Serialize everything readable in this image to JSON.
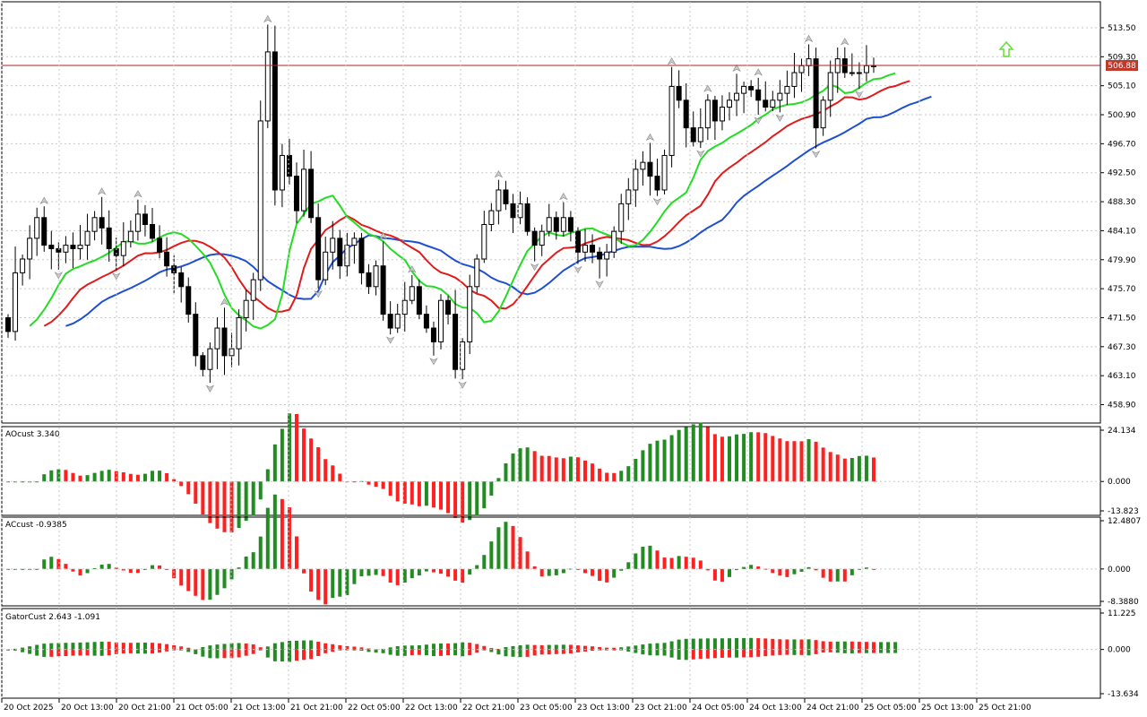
{
  "colors": {
    "background": "#ffffff",
    "grid": "#c8c8c8",
    "bull_body": "#ffffff",
    "bear_body": "#000000",
    "current_price_line": "#b22222",
    "current_price_label_bg": "#c0392b",
    "jaw": "#1f4fd1",
    "teeth": "#e01b1b",
    "lips": "#22dd22",
    "hist_up": "#228B22",
    "hist_down": "#ff2020",
    "signal_arrow": "#66dd33"
  },
  "price_panel": {
    "current_price": "506.88",
    "y_ticks": [
      "513.50",
      "509.30",
      "505.10",
      "500.90",
      "496.70",
      "492.50",
      "488.30",
      "484.10",
      "479.90",
      "475.70",
      "471.50",
      "467.30",
      "463.10",
      "458.90"
    ]
  },
  "ao_panel": {
    "label": "AOcust 3.340",
    "y_ticks": [
      "24.134",
      "0.000",
      "-13.823"
    ]
  },
  "ac_panel": {
    "label": "ACcust -0.9385",
    "y_ticks": [
      "12.4807",
      "0.000",
      "-8.3880"
    ]
  },
  "gator_panel": {
    "label": "GatorCust 2.643 -1.091",
    "y_ticks": [
      "11.225",
      "0.000",
      "-13.634"
    ]
  },
  "x_axis": {
    "labels": [
      "20 Oct 2025",
      "20 Oct 13:00",
      "20 Oct 21:00",
      "21 Oct 05:00",
      "21 Oct 13:00",
      "21 Oct 21:00",
      "22 Oct 05:00",
      "22 Oct 13:00",
      "22 Oct 21:00",
      "23 Oct 05:00",
      "23 Oct 13:00",
      "23 Oct 21:00",
      "24 Oct 05:00",
      "24 Oct 13:00",
      "24 Oct 21:00",
      "25 Oct 05:00",
      "25 Oct 13:00",
      "25 Oct 21:00"
    ]
  },
  "chart_data": {
    "type": "candlestick",
    "symbol_hint": "",
    "price_range": [
      456.5,
      517.0
    ],
    "closes": [
      469.5,
      478.0,
      480.0,
      483.0,
      486.0,
      482.0,
      481.5,
      481.0,
      482.0,
      481.5,
      482.0,
      484.0,
      486.0,
      484.5,
      481.5,
      480.5,
      482.5,
      484.0,
      486.5,
      485.0,
      483.0,
      481.0,
      479.0,
      478.0,
      476.0,
      472.0,
      466.0,
      464.0,
      467.0,
      470.0,
      466.0,
      467.0,
      471.5,
      474.0,
      477.0,
      500.0,
      510.0,
      490.0,
      495.0,
      492.0,
      487.0,
      493.0,
      486.0,
      477.0,
      481.0,
      483.0,
      479.0,
      482.0,
      483.0,
      478.0,
      476.0,
      479.0,
      472.0,
      470.0,
      472.0,
      474.0,
      476.0,
      472.0,
      470.0,
      468.0,
      474.0,
      472.0,
      464.0,
      468.0,
      476.0,
      480.0,
      485.0,
      487.0,
      490.0,
      488.0,
      486.0,
      488.0,
      484.0,
      482.0,
      484.0,
      486.0,
      484.0,
      486.0,
      484.0,
      481.0,
      482.0,
      481.0,
      480.0,
      481.0,
      484.0,
      488.0,
      490.0,
      493.0,
      494.0,
      492.0,
      490.0,
      495.0,
      505.0,
      503.0,
      499.0,
      497.0,
      499.0,
      503.0,
      500.0,
      502.0,
      503.0,
      504.0,
      505.0,
      504.5,
      503.0,
      502.0,
      503.0,
      504.0,
      505.0,
      507.0,
      508.0,
      509.0,
      499.0,
      503.0,
      507.0,
      509.0,
      507.0,
      507.0,
      507.0,
      508.0,
      508.0
    ],
    "volatility_note": "",
    "moving_averages": [
      {
        "role": "jaw"
      },
      {
        "role": "teeth"
      },
      {
        "role": "lips"
      }
    ]
  }
}
